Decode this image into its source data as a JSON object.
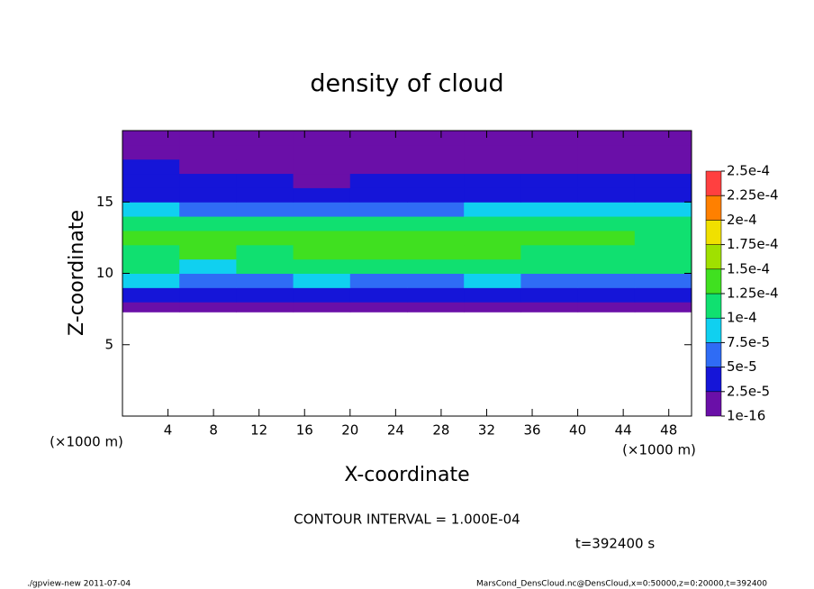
{
  "chart_data": {
    "type": "heatmap",
    "title": "density of cloud",
    "xlabel": "X-coordinate",
    "ylabel": "Z-coordinate",
    "xunit": "(×1000 m)",
    "yunit": "(×1000 m)",
    "x_edges": [
      0,
      5,
      10,
      15,
      20,
      25,
      30,
      35,
      40,
      45,
      50
    ],
    "z_edges": [
      7.3,
      8,
      9,
      10,
      11,
      12,
      13,
      14,
      15,
      16,
      17,
      18,
      19,
      20
    ],
    "values": [
      [
        2e-05,
        2e-05,
        2e-05,
        2e-05,
        2e-05,
        2e-05,
        2e-05,
        2e-05,
        2e-05,
        2e-05
      ],
      [
        4e-05,
        4e-05,
        4e-05,
        4e-05,
        4e-05,
        4e-05,
        4e-05,
        4e-05,
        4e-05,
        3e-05
      ],
      [
        8e-05,
        7e-05,
        7e-05,
        8e-05,
        7e-05,
        7e-05,
        8e-05,
        7e-05,
        7e-05,
        6e-05
      ],
      [
        0.0001,
        9.5e-05,
        0.0001,
        0.0001,
        0.0001,
        0.0001,
        0.0001,
        0.0001,
        0.0001,
        0.0001
      ],
      [
        0.00012,
        0.00013,
        0.00012,
        0.00013,
        0.00013,
        0.00013,
        0.00013,
        0.00012,
        0.00012,
        0.00012
      ],
      [
        0.00013,
        0.00013,
        0.00013,
        0.00013,
        0.00014,
        0.00013,
        0.00013,
        0.00013,
        0.00013,
        0.00012
      ],
      [
        0.00011,
        0.00011,
        0.00011,
        0.00011,
        0.0001,
        0.00011,
        0.00011,
        0.00011,
        0.00011,
        0.00011
      ],
      [
        8e-05,
        7e-05,
        6e-05,
        5e-05,
        6e-05,
        6e-05,
        8e-05,
        8e-05,
        9e-05,
        9e-05
      ],
      [
        4e-05,
        4e-05,
        4e-05,
        3e-05,
        4e-05,
        4e-05,
        4e-05,
        4e-05,
        4e-05,
        4e-05
      ],
      [
        3e-05,
        3e-05,
        3e-05,
        2e-05,
        3e-05,
        3e-05,
        3e-05,
        3e-05,
        3e-05,
        3e-05
      ],
      [
        3e-05,
        2e-05,
        2e-05,
        2e-05,
        2e-05,
        2e-05,
        2e-05,
        2e-05,
        2e-05,
        2e-05
      ],
      [
        2e-05,
        2e-05,
        1.5e-05,
        1e-05,
        1.5e-05,
        1.5e-05,
        1e-05,
        1.5e-05,
        1.5e-05,
        2e-05
      ],
      [
        1e-05,
        1e-05,
        1e-05,
        1e-05,
        1e-05,
        1e-05,
        1e-05,
        1e-05,
        1e-05,
        1e-05
      ]
    ],
    "xlim": [
      0,
      50
    ],
    "xticks": [
      4,
      8,
      12,
      16,
      20,
      24,
      28,
      32,
      36,
      40,
      44,
      48
    ],
    "ylim": [
      0,
      20
    ],
    "yticks": [
      5,
      10,
      15
    ],
    "colorbar": {
      "ticks": [
        {
          "value": 1e-16,
          "label": "1e-16"
        },
        {
          "value": 2.5e-05,
          "label": "2.5e-5"
        },
        {
          "value": 5e-05,
          "label": "5e-5"
        },
        {
          "value": 7.5e-05,
          "label": "7.5e-5"
        },
        {
          "value": 0.0001,
          "label": "1e-4"
        },
        {
          "value": 0.000125,
          "label": "1.25e-4"
        },
        {
          "value": 0.00015,
          "label": "1.5e-4"
        },
        {
          "value": 0.000175,
          "label": "1.75e-4"
        },
        {
          "value": 0.0002,
          "label": "2e-4"
        },
        {
          "value": 0.000225,
          "label": "2.25e-4"
        },
        {
          "value": 0.00025,
          "label": "2.5e-4"
        }
      ],
      "colors": [
        "#6a0fa8",
        "#1515d8",
        "#2f6cf5",
        "#10d0f0",
        "#10e070",
        "#40e020",
        "#a0e000",
        "#f0e000",
        "#ff8000",
        "#ff4040"
      ]
    },
    "contour_note": "CONTOUR INTERVAL = 1.000E-04",
    "time_note": "t=392400 s",
    "footer_left": "./gpview-new  2011-07-04",
    "footer_right": "MarsCond_DensCloud.nc@DensCloud,x=0:50000,z=0:20000,t=392400"
  }
}
